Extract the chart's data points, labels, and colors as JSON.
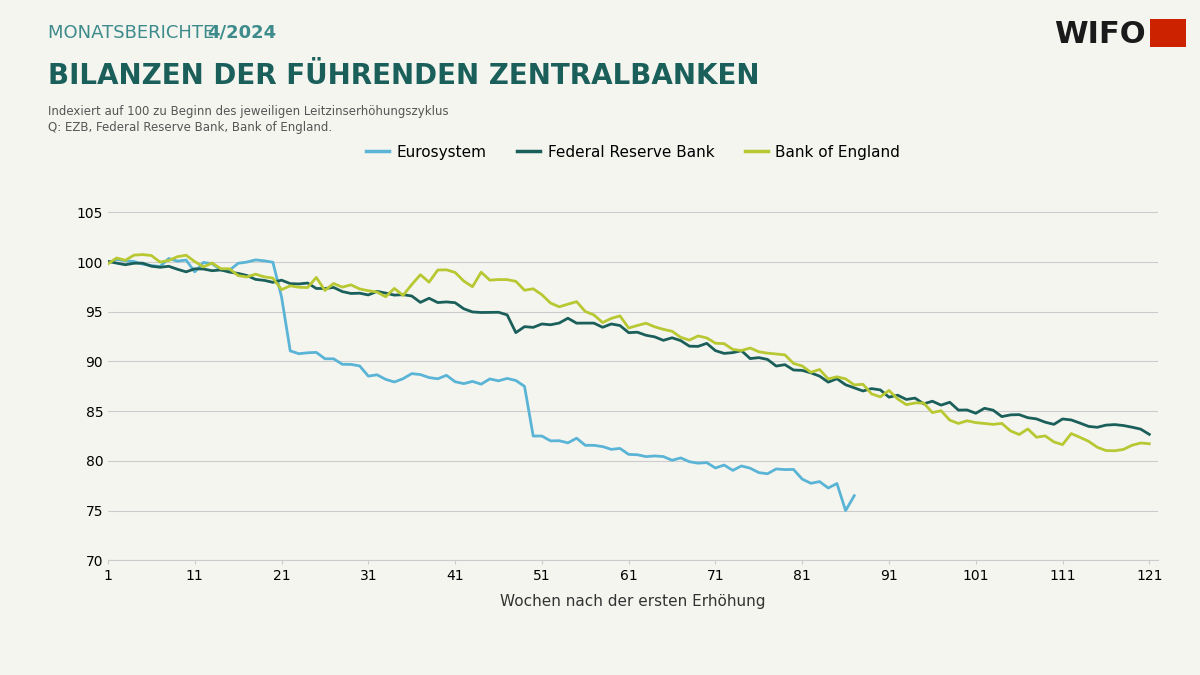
{
  "title_line1_normal": "MONATSBERICHTE ",
  "title_line1_bold": "4/2024",
  "title_line2": "BILANZEN DER FÜHRENDEN ZENTRALBANKEN",
  "subtitle1": "Indexiert auf 100 zu Beginn des jeweiligen Leitzinserhöhungszyklus",
  "subtitle2": "Q: EZB, Federal Reserve Bank, Bank of England.",
  "xlabel": "Wochen nach der ersten Erhöhung",
  "wifo_text": "WIFO",
  "color_eurosystem": "#5ab4d6",
  "color_fed": "#1a5f5a",
  "color_boe": "#b8c832",
  "color_title_normal": "#3d8b8b",
  "color_title_bold": "#3d8b8b",
  "color_title2": "#1a5f5a",
  "color_wifo": "#1a1a1a",
  "color_wifo_square": "#cc2200",
  "background_color": "#f5f5f0",
  "ylim": [
    70,
    106
  ],
  "xlim": [
    1,
    122
  ],
  "yticks": [
    70,
    75,
    80,
    85,
    90,
    95,
    100,
    105
  ],
  "xticks": [
    1,
    11,
    21,
    31,
    41,
    51,
    61,
    71,
    81,
    91,
    101,
    111,
    121
  ]
}
